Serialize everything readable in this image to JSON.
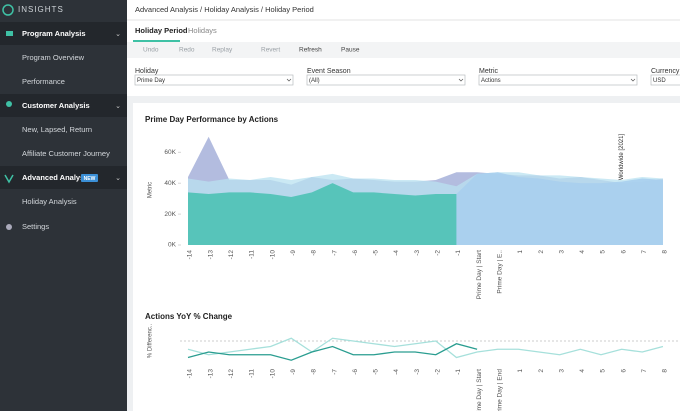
{
  "sidebar": {
    "brand": "INSIGHTS",
    "items": [
      {
        "label": "Program Analysis"
      },
      {
        "label": "Program Overview"
      },
      {
        "label": "Performance"
      },
      {
        "label": "Customer Analysis"
      },
      {
        "label": "New, Lapsed, Return"
      },
      {
        "label": "Affiliate Customer Journey"
      },
      {
        "label": "Advanced Analysis",
        "badge": "NEW"
      },
      {
        "label": "Holiday Analysis"
      },
      {
        "label": "Settings"
      }
    ]
  },
  "breadcrumb": "Advanced Analysis / Holiday Analysis / Holiday Period",
  "tabs": [
    "Holiday Period",
    "Holidays"
  ],
  "toolbar": [
    "Undo",
    "Redo",
    "Replay",
    "Revert",
    "Refresh",
    "Pause"
  ],
  "filters": [
    {
      "label": "Holiday",
      "value": "Prime Day"
    },
    {
      "label": "Event Season",
      "value": "(All)"
    },
    {
      "label": "Metric",
      "value": "Actions"
    },
    {
      "label": "Currency",
      "value": "USD"
    }
  ],
  "chart_data": [
    {
      "type": "area",
      "title": "Prime Day Performance by Actions",
      "y_label": "Metric",
      "annotation": "Worldwide [2021]",
      "categories": [
        "-14",
        "-13",
        "-12",
        "-11",
        "-10",
        "-9",
        "-8",
        "-7",
        "-6",
        "-5",
        "-4",
        "-3",
        "-2",
        "-1",
        "Prime Day | Start",
        "Prime Day | E..",
        "1",
        "2",
        "3",
        "4",
        "5",
        "6",
        "7",
        "8"
      ],
      "ylim": [
        0,
        75000
      ],
      "yticks": [
        {
          "value": 0,
          "label": "0K"
        },
        {
          "value": 20000,
          "label": "20K"
        },
        {
          "value": 40000,
          "label": "40K"
        },
        {
          "value": 60000,
          "label": "60K"
        }
      ],
      "series": [
        {
          "color": "#9aa6d4",
          "values": [
            44000,
            70000,
            42000,
            42000,
            42000,
            39000,
            44000,
            42000,
            43000,
            42000,
            41000,
            41000,
            42000,
            47000,
            47000,
            46000,
            45000,
            45000,
            43000,
            44000,
            42000,
            40000,
            41000,
            43000
          ]
        },
        {
          "color": "#b9e1f0",
          "values": [
            43000,
            41000,
            43000,
            42000,
            44000,
            42000,
            44000,
            46000,
            43000,
            43000,
            42000,
            42000,
            41000,
            38000,
            46000,
            47000,
            47000,
            45000,
            45000,
            44000,
            43000,
            42000,
            44000,
            43000
          ]
        },
        {
          "color": "#4cc2b5",
          "values": [
            34000,
            33000,
            34000,
            34000,
            33000,
            31000,
            34000,
            40000,
            34000,
            34000,
            33000,
            32000,
            33000,
            33000,
            null,
            null,
            null,
            null,
            null,
            null,
            null,
            null,
            null,
            null
          ]
        },
        {
          "color": "#a9cfee",
          "values": [
            null,
            null,
            null,
            null,
            null,
            null,
            null,
            null,
            null,
            null,
            null,
            null,
            null,
            33000,
            46000,
            47000,
            44000,
            43000,
            41000,
            40000,
            40000,
            41000,
            43000,
            42000
          ]
        }
      ]
    },
    {
      "type": "line",
      "title": "Actions YoY % Change",
      "y_label": "% Differenc..",
      "categories": [
        "-14",
        "-13",
        "-12",
        "-11",
        "-10",
        "-9",
        "-8",
        "-7",
        "-6",
        "-5",
        "-4",
        "-3",
        "-2",
        "-1",
        "Prime Day | Start",
        "Prime Day | End",
        "1",
        "2",
        "3",
        "4",
        "5",
        "6",
        "7",
        "8"
      ],
      "ylim": [
        -40,
        40
      ],
      "series": [
        {
          "color": "#a6e0db",
          "values": [
            -15,
            -25,
            -20,
            -15,
            -10,
            5,
            -20,
            5,
            0,
            -5,
            -10,
            -5,
            0,
            -30,
            -20,
            -15,
            -15,
            -20,
            -25,
            -15,
            -25,
            -15,
            -20,
            -10
          ]
        },
        {
          "color": "#2a9d90",
          "values": [
            -30,
            -20,
            -25,
            -25,
            -25,
            -35,
            -20,
            -10,
            -25,
            -25,
            -20,
            -20,
            -25,
            -5,
            -15,
            null,
            null,
            null,
            null,
            null,
            null,
            null,
            null,
            null
          ]
        }
      ]
    }
  ]
}
